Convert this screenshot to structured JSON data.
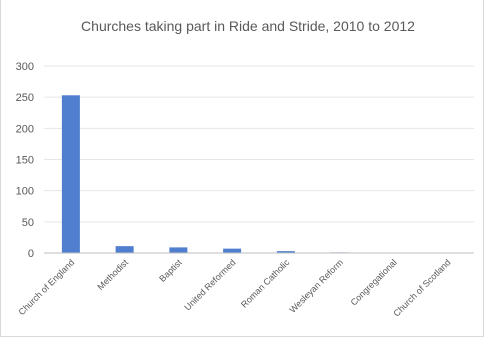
{
  "chart_data": {
    "type": "bar",
    "title": "Churches taking part in Ride and Stride, 2010 to 2012",
    "xlabel": "",
    "ylabel": "",
    "categories": [
      "Church of England",
      "Methodist",
      "Baptist",
      "United Reformed",
      "Roman Catholic",
      "Wesleyan Reform",
      "Congregational",
      "Church of Scotland"
    ],
    "values": [
      253,
      11,
      9,
      7,
      3,
      1,
      0.5,
      0.5
    ],
    "ylim": [
      0,
      300
    ],
    "yticks": [
      0,
      50,
      100,
      150,
      200,
      250,
      300
    ],
    "grid": true,
    "legend": "none",
    "bar_color": "#4f7fce"
  }
}
